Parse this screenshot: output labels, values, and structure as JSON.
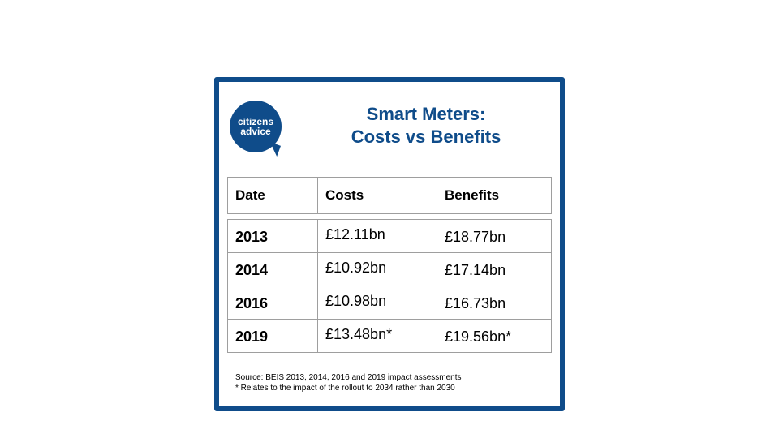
{
  "logo": {
    "line1": "citizens",
    "line2": "advice"
  },
  "title": {
    "line1": "Smart Meters:",
    "line2": "Costs vs Benefits"
  },
  "table": {
    "headers": [
      "Date",
      "Costs",
      "Benefits"
    ],
    "rows": [
      [
        "2013",
        "£12.11bn",
        "£18.77bn"
      ],
      [
        "2014",
        "£10.92bn",
        "£17.14bn"
      ],
      [
        "2016",
        "£10.98bn",
        "£16.73bn"
      ],
      [
        "2019",
        "£13.48bn*",
        "£19.56bn*"
      ]
    ]
  },
  "footnotes": {
    "source": "Source: BEIS 2013, 2014, 2016 and 2019 impact assessments",
    "note": "* Relates to the impact of the rollout to 2034 rather than 2030"
  },
  "colors": {
    "brand": "#0f4c8a",
    "border": "#9e9e9e"
  }
}
